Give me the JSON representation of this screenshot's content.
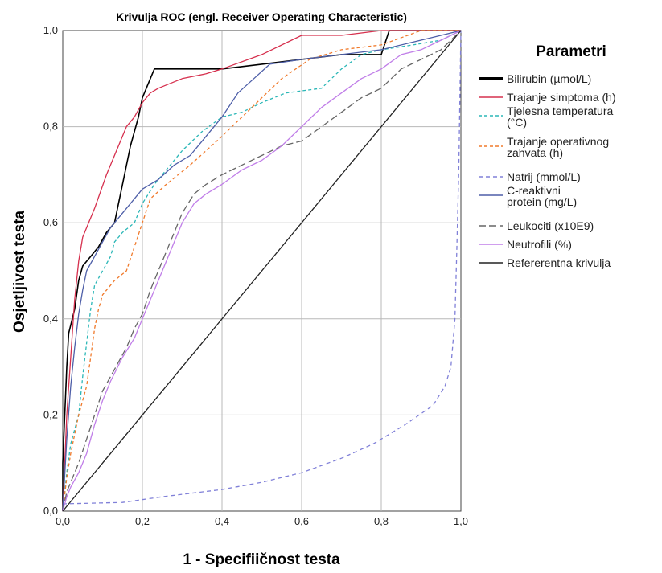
{
  "chart_data": {
    "type": "line",
    "title": "Krivulja ROC (engl. Receiver Operating Characteristic)",
    "xlabel": "1 - Specifiičnost testa",
    "ylabel": "Osjetljivost testa",
    "xlim": [
      0,
      1
    ],
    "ylim": [
      0,
      1
    ],
    "xticks": [
      "0,0",
      "0,2",
      "0,4",
      "0,6",
      "0,8",
      "1,0"
    ],
    "yticks": [
      "0,0",
      "0,2",
      "0,4",
      "0,6",
      "0,8",
      "1,0"
    ],
    "grid": true,
    "legend_position": "right",
    "legend_title": "Parametri",
    "series": [
      {
        "name": "Bilirubin (µmol/L)",
        "color": "#000000",
        "dash": "solid",
        "bold": true,
        "points": [
          [
            0,
            0
          ],
          [
            0,
            0.1
          ],
          [
            0.005,
            0.2
          ],
          [
            0.01,
            0.3
          ],
          [
            0.015,
            0.37
          ],
          [
            0.03,
            0.42
          ],
          [
            0.04,
            0.48
          ],
          [
            0.05,
            0.51
          ],
          [
            0.07,
            0.53
          ],
          [
            0.09,
            0.55
          ],
          [
            0.11,
            0.58
          ],
          [
            0.13,
            0.6
          ],
          [
            0.14,
            0.64
          ],
          [
            0.15,
            0.68
          ],
          [
            0.17,
            0.76
          ],
          [
            0.19,
            0.82
          ],
          [
            0.2,
            0.86
          ],
          [
            0.22,
            0.9
          ],
          [
            0.23,
            0.92
          ],
          [
            0.3,
            0.92
          ],
          [
            0.4,
            0.92
          ],
          [
            0.5,
            0.93
          ],
          [
            0.6,
            0.94
          ],
          [
            0.7,
            0.95
          ],
          [
            0.8,
            0.95
          ],
          [
            0.82,
            1.0
          ],
          [
            1.0,
            1.0
          ]
        ]
      },
      {
        "name": "Trajanje simptoma (h)",
        "color": "#d6304e",
        "dash": "solid",
        "bold": false,
        "points": [
          [
            0,
            0
          ],
          [
            0.01,
            0.2
          ],
          [
            0.02,
            0.32
          ],
          [
            0.03,
            0.44
          ],
          [
            0.04,
            0.52
          ],
          [
            0.05,
            0.57
          ],
          [
            0.08,
            0.63
          ],
          [
            0.11,
            0.7
          ],
          [
            0.14,
            0.76
          ],
          [
            0.16,
            0.8
          ],
          [
            0.18,
            0.82
          ],
          [
            0.2,
            0.85
          ],
          [
            0.22,
            0.87
          ],
          [
            0.24,
            0.88
          ],
          [
            0.3,
            0.9
          ],
          [
            0.36,
            0.91
          ],
          [
            0.4,
            0.92
          ],
          [
            0.5,
            0.95
          ],
          [
            0.6,
            0.99
          ],
          [
            0.7,
            0.99
          ],
          [
            0.8,
            1.0
          ],
          [
            1.0,
            1.0
          ]
        ]
      },
      {
        "name": "Tjelesna temperatura (°C)",
        "color": "#2bb7b7",
        "dash": "4,3",
        "bold": false,
        "points": [
          [
            0,
            0
          ],
          [
            0.01,
            0.08
          ],
          [
            0.02,
            0.14
          ],
          [
            0.04,
            0.2
          ],
          [
            0.05,
            0.28
          ],
          [
            0.06,
            0.35
          ],
          [
            0.07,
            0.42
          ],
          [
            0.08,
            0.47
          ],
          [
            0.1,
            0.5
          ],
          [
            0.12,
            0.53
          ],
          [
            0.13,
            0.56
          ],
          [
            0.15,
            0.58
          ],
          [
            0.18,
            0.6
          ],
          [
            0.2,
            0.64
          ],
          [
            0.23,
            0.68
          ],
          [
            0.26,
            0.71
          ],
          [
            0.3,
            0.75
          ],
          [
            0.35,
            0.79
          ],
          [
            0.4,
            0.82
          ],
          [
            0.45,
            0.83
          ],
          [
            0.5,
            0.85
          ],
          [
            0.56,
            0.87
          ],
          [
            0.65,
            0.88
          ],
          [
            0.7,
            0.92
          ],
          [
            0.75,
            0.95
          ],
          [
            0.8,
            0.96
          ],
          [
            0.88,
            0.97
          ],
          [
            0.95,
            0.98
          ],
          [
            1.0,
            1.0
          ]
        ]
      },
      {
        "name": "Trajanje operativnog zahvata (h)",
        "color": "#f07a2c",
        "dash": "4,3",
        "bold": false,
        "points": [
          [
            0,
            0
          ],
          [
            0.01,
            0.07
          ],
          [
            0.02,
            0.12
          ],
          [
            0.04,
            0.2
          ],
          [
            0.06,
            0.26
          ],
          [
            0.07,
            0.32
          ],
          [
            0.08,
            0.38
          ],
          [
            0.09,
            0.42
          ],
          [
            0.1,
            0.45
          ],
          [
            0.13,
            0.48
          ],
          [
            0.16,
            0.5
          ],
          [
            0.18,
            0.55
          ],
          [
            0.2,
            0.6
          ],
          [
            0.22,
            0.65
          ],
          [
            0.26,
            0.68
          ],
          [
            0.32,
            0.72
          ],
          [
            0.36,
            0.75
          ],
          [
            0.4,
            0.78
          ],
          [
            0.45,
            0.82
          ],
          [
            0.5,
            0.86
          ],
          [
            0.55,
            0.9
          ],
          [
            0.62,
            0.94
          ],
          [
            0.7,
            0.96
          ],
          [
            0.8,
            0.97
          ],
          [
            0.9,
            1.0
          ],
          [
            1.0,
            1.0
          ]
        ]
      },
      {
        "name": "Natrij (mmol/L)",
        "color": "#8080d8",
        "dash": "5,4",
        "bold": false,
        "points": [
          [
            0,
            0.015
          ],
          [
            0.05,
            0.016
          ],
          [
            0.15,
            0.018
          ],
          [
            0.25,
            0.03
          ],
          [
            0.4,
            0.045
          ],
          [
            0.5,
            0.06
          ],
          [
            0.6,
            0.08
          ],
          [
            0.7,
            0.11
          ],
          [
            0.78,
            0.14
          ],
          [
            0.86,
            0.18
          ],
          [
            0.93,
            0.22
          ],
          [
            0.96,
            0.26
          ],
          [
            0.975,
            0.3
          ],
          [
            0.985,
            0.4
          ],
          [
            0.99,
            0.55
          ],
          [
            0.995,
            0.72
          ],
          [
            1.0,
            1.0
          ]
        ]
      },
      {
        "name": "C-reaktivni  protein (mg/L)",
        "color": "#4e5fa8",
        "dash": "solid",
        "bold": false,
        "points": [
          [
            0,
            0
          ],
          [
            0.01,
            0.15
          ],
          [
            0.02,
            0.26
          ],
          [
            0.03,
            0.34
          ],
          [
            0.04,
            0.41
          ],
          [
            0.05,
            0.46
          ],
          [
            0.06,
            0.5
          ],
          [
            0.08,
            0.53
          ],
          [
            0.1,
            0.56
          ],
          [
            0.12,
            0.59
          ],
          [
            0.14,
            0.61
          ],
          [
            0.16,
            0.63
          ],
          [
            0.18,
            0.65
          ],
          [
            0.2,
            0.67
          ],
          [
            0.24,
            0.69
          ],
          [
            0.28,
            0.72
          ],
          [
            0.32,
            0.74
          ],
          [
            0.36,
            0.78
          ],
          [
            0.4,
            0.82
          ],
          [
            0.44,
            0.87
          ],
          [
            0.48,
            0.9
          ],
          [
            0.52,
            0.93
          ],
          [
            0.6,
            0.94
          ],
          [
            0.7,
            0.95
          ],
          [
            0.8,
            0.96
          ],
          [
            0.9,
            0.98
          ],
          [
            0.95,
            0.99
          ],
          [
            1.0,
            1.0
          ]
        ]
      },
      {
        "name": "Leukociti (x10E9)",
        "color": "#666666",
        "dash": "9,4",
        "bold": false,
        "points": [
          [
            0,
            0
          ],
          [
            0.01,
            0.04
          ],
          [
            0.02,
            0.06
          ],
          [
            0.04,
            0.1
          ],
          [
            0.06,
            0.15
          ],
          [
            0.08,
            0.2
          ],
          [
            0.1,
            0.25
          ],
          [
            0.12,
            0.28
          ],
          [
            0.14,
            0.31
          ],
          [
            0.16,
            0.34
          ],
          [
            0.18,
            0.38
          ],
          [
            0.2,
            0.41
          ],
          [
            0.22,
            0.46
          ],
          [
            0.25,
            0.52
          ],
          [
            0.28,
            0.58
          ],
          [
            0.3,
            0.62
          ],
          [
            0.33,
            0.66
          ],
          [
            0.36,
            0.68
          ],
          [
            0.4,
            0.7
          ],
          [
            0.45,
            0.72
          ],
          [
            0.5,
            0.74
          ],
          [
            0.55,
            0.76
          ],
          [
            0.6,
            0.77
          ],
          [
            0.65,
            0.8
          ],
          [
            0.7,
            0.83
          ],
          [
            0.75,
            0.86
          ],
          [
            0.8,
            0.88
          ],
          [
            0.85,
            0.92
          ],
          [
            0.9,
            0.94
          ],
          [
            0.95,
            0.96
          ],
          [
            1.0,
            1.0
          ]
        ]
      },
      {
        "name": "Neutrofili (%)",
        "color": "#c07ee8",
        "dash": "solid",
        "bold": false,
        "points": [
          [
            0,
            0
          ],
          [
            0.01,
            0.03
          ],
          [
            0.02,
            0.05
          ],
          [
            0.04,
            0.08
          ],
          [
            0.06,
            0.12
          ],
          [
            0.08,
            0.18
          ],
          [
            0.1,
            0.23
          ],
          [
            0.12,
            0.27
          ],
          [
            0.15,
            0.32
          ],
          [
            0.18,
            0.36
          ],
          [
            0.2,
            0.4
          ],
          [
            0.22,
            0.44
          ],
          [
            0.25,
            0.5
          ],
          [
            0.28,
            0.56
          ],
          [
            0.3,
            0.6
          ],
          [
            0.33,
            0.64
          ],
          [
            0.36,
            0.66
          ],
          [
            0.4,
            0.68
          ],
          [
            0.45,
            0.71
          ],
          [
            0.5,
            0.73
          ],
          [
            0.55,
            0.76
          ],
          [
            0.6,
            0.8
          ],
          [
            0.65,
            0.84
          ],
          [
            0.7,
            0.87
          ],
          [
            0.75,
            0.9
          ],
          [
            0.8,
            0.92
          ],
          [
            0.85,
            0.95
          ],
          [
            0.9,
            0.96
          ],
          [
            0.95,
            0.98
          ],
          [
            1.0,
            1.0
          ]
        ]
      },
      {
        "name": "Refererentna krivulja",
        "color": "#222222",
        "dash": "solid",
        "bold": false,
        "points": [
          [
            0,
            0
          ],
          [
            1,
            1
          ]
        ]
      }
    ]
  }
}
